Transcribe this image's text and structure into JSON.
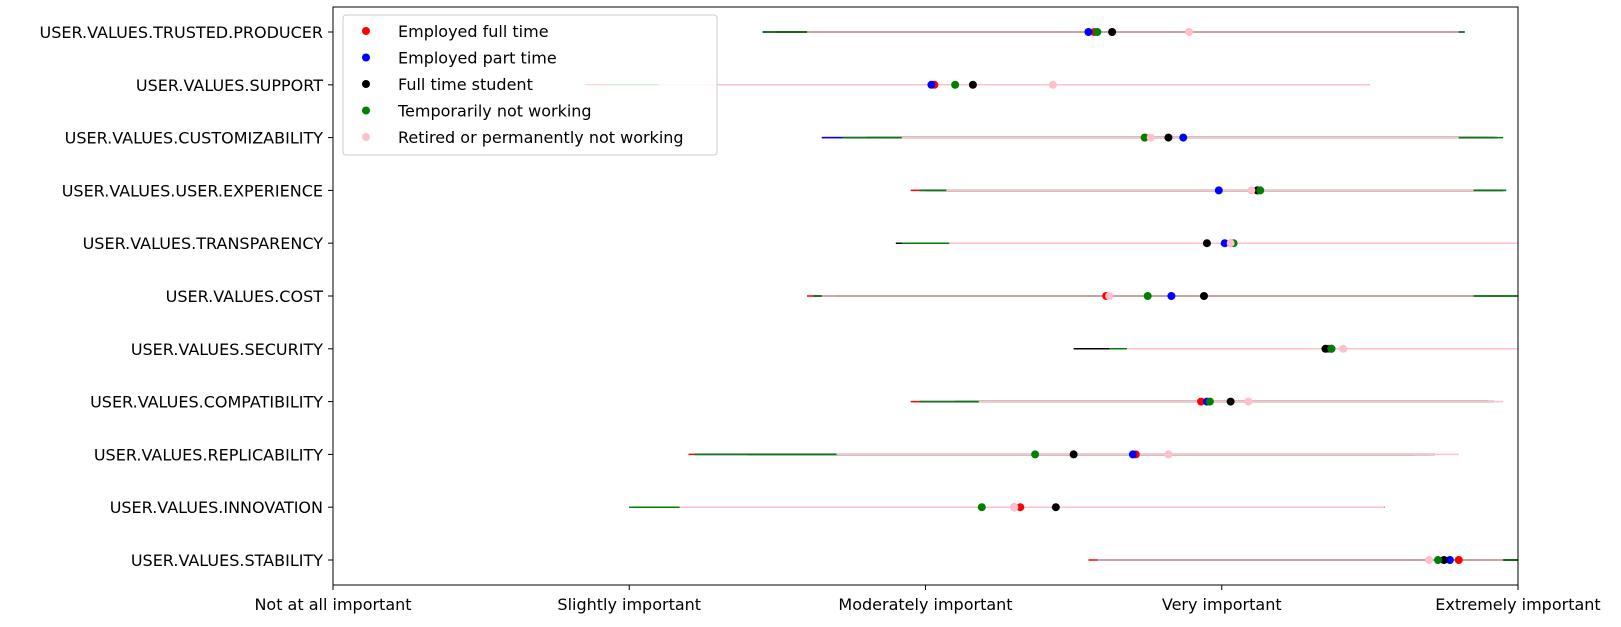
{
  "chart_data": {
    "type": "scatter",
    "orientation": "horizontal",
    "categories": [
      "USER.VALUES.TRUSTED.PRODUCER",
      "USER.VALUES.SUPPORT",
      "USER.VALUES.CUSTOMIZABILITY",
      "USER.VALUES.USER.EXPERIENCE",
      "USER.VALUES.TRANSPARENCY",
      "USER.VALUES.COST",
      "USER.VALUES.SECURITY",
      "USER.VALUES.COMPATIBILITY",
      "USER.VALUES.REPLICABILITY",
      "USER.VALUES.INNOVATION",
      "USER.VALUES.STABILITY"
    ],
    "x_ticks": [
      1,
      2,
      3,
      4,
      5
    ],
    "x_tick_labels": [
      "Not at all important",
      "Slightly important",
      "Moderately important",
      "Very important",
      "Extremely important"
    ],
    "xlim": [
      1,
      5
    ],
    "legend": {
      "location": "upper-left",
      "entries": [
        "Employed full time",
        "Employed part time",
        "Full time student",
        "Temporarily not working",
        "Retired or permanently not working"
      ]
    },
    "series": [
      {
        "name": "Employed full time",
        "color": "#ff0000",
        "values": [
          3.57,
          3.03,
          3.74,
          4.12,
          4.03,
          3.61,
          4.36,
          3.93,
          3.71,
          3.32,
          4.8
        ],
        "ranges": [
          [
            2.45,
            4.8
          ],
          [
            1.85,
            4.5
          ],
          [
            2.65,
            4.9
          ],
          [
            2.95,
            4.95
          ],
          [
            2.9,
            5.0
          ],
          [
            2.6,
            4.85
          ],
          [
            3.6,
            5.0
          ],
          [
            2.95,
            4.9
          ],
          [
            2.2,
            4.7
          ],
          [
            2.02,
            4.55
          ],
          [
            3.55,
            5.0
          ]
        ]
      },
      {
        "name": "Employed part time",
        "color": "#0000ff",
        "values": [
          3.55,
          3.02,
          3.87,
          3.99,
          4.01,
          3.83,
          4.37,
          3.95,
          3.7,
          3.3,
          4.77
        ],
        "ranges": [
          [
            2.45,
            4.82
          ],
          [
            1.92,
            4.48
          ],
          [
            2.65,
            4.92
          ],
          [
            2.98,
            4.96
          ],
          [
            2.92,
            5.0
          ],
          [
            2.62,
            4.85
          ],
          [
            3.62,
            5.0
          ],
          [
            2.98,
            4.92
          ],
          [
            2.22,
            4.72
          ],
          [
            2.0,
            4.55
          ],
          [
            3.58,
            5.0
          ]
        ]
      },
      {
        "name": "Full time student",
        "color": "#000000",
        "values": [
          3.63,
          3.16,
          3.82,
          4.12,
          3.95,
          3.94,
          4.35,
          4.03,
          3.5,
          3.44,
          4.75
        ],
        "ranges": [
          [
            2.5,
            4.8
          ],
          [
            2.1,
            4.45
          ],
          [
            2.8,
            4.93
          ],
          [
            3.0,
            4.95
          ],
          [
            2.9,
            5.0
          ],
          [
            2.7,
            5.0
          ],
          [
            3.5,
            5.0
          ],
          [
            3.1,
            4.9
          ],
          [
            2.4,
            4.65
          ],
          [
            2.2,
            4.55
          ],
          [
            3.58,
            5.0
          ]
        ]
      },
      {
        "name": "Temporarily not working",
        "color": "#008000",
        "values": [
          3.58,
          3.1,
          3.74,
          4.13,
          4.04,
          3.75,
          4.37,
          3.96,
          3.37,
          3.19,
          4.73
        ],
        "ranges": [
          [
            2.45,
            4.82
          ],
          [
            1.92,
            4.45
          ],
          [
            2.72,
            4.95
          ],
          [
            2.98,
            4.96
          ],
          [
            2.92,
            5.0
          ],
          [
            2.62,
            5.0
          ],
          [
            3.62,
            5.0
          ],
          [
            2.98,
            4.92
          ],
          [
            2.22,
            4.72
          ],
          [
            2.0,
            4.55
          ],
          [
            3.58,
            5.0
          ]
        ]
      },
      {
        "name": "Retired or permanently not working",
        "color": "#ffc0cb",
        "values": [
          3.89,
          3.43,
          3.76,
          4.1,
          4.03,
          3.62,
          4.41,
          4.09,
          3.82,
          3.3,
          4.7
        ],
        "ranges": [
          [
            2.6,
            4.8
          ],
          [
            2.1,
            4.5
          ],
          [
            2.92,
            4.8
          ],
          [
            3.07,
            4.85
          ],
          [
            3.08,
            5.0
          ],
          [
            2.65,
            4.85
          ],
          [
            3.68,
            5.0
          ],
          [
            3.18,
            4.95
          ],
          [
            2.7,
            4.8
          ],
          [
            2.17,
            4.55
          ],
          [
            3.58,
            4.95
          ]
        ]
      }
    ]
  }
}
